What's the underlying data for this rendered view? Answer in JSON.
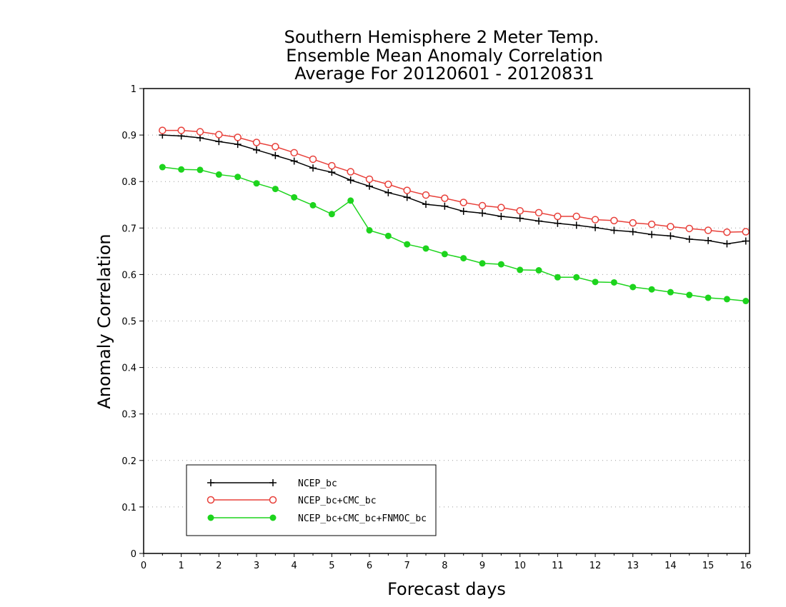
{
  "chart_data": {
    "type": "line",
    "title": [
      "Southern Hemisphere 2 Meter Temp.",
      "Ensemble Mean Anomaly Correlation",
      "Average For 20120601 - 20120831"
    ],
    "xlabel": "Forecast days",
    "ylabel": "Anomaly Correlation",
    "xlim": [
      0,
      16.1
    ],
    "ylim": [
      0,
      1
    ],
    "xticks": [
      "0",
      "1",
      "2",
      "3",
      "4",
      "5",
      "6",
      "7",
      "8",
      "9",
      "10",
      "11",
      "12",
      "13",
      "14",
      "15",
      "16"
    ],
    "yticks": [
      "0",
      "0.1",
      "0.2",
      "0.3",
      "0.4",
      "0.5",
      "0.6",
      "0.7",
      "0.8",
      "0.9",
      "1"
    ],
    "grid": true,
    "legend_position": "bottom-left",
    "x": [
      0.5,
      1,
      1.5,
      2,
      2.5,
      3,
      3.5,
      4,
      4.5,
      5,
      5.5,
      6,
      6.5,
      7,
      7.5,
      8,
      8.5,
      9,
      9.5,
      10,
      10.5,
      11,
      11.5,
      12,
      12.5,
      13,
      13.5,
      14,
      14.5,
      15,
      15.5,
      16
    ],
    "series": [
      {
        "name": "NCEP_bc",
        "color": "#000000",
        "marker": "plus",
        "values": [
          0.9,
          0.898,
          0.894,
          0.886,
          0.88,
          0.868,
          0.856,
          0.844,
          0.829,
          0.82,
          0.803,
          0.79,
          0.776,
          0.766,
          0.751,
          0.747,
          0.736,
          0.732,
          0.725,
          0.721,
          0.715,
          0.71,
          0.706,
          0.701,
          0.695,
          0.692,
          0.686,
          0.683,
          0.676,
          0.673,
          0.666,
          0.672
        ]
      },
      {
        "name": "NCEP_bc+CMC_bc",
        "color": "#e8403a",
        "marker": "open-circle",
        "values": [
          0.91,
          0.91,
          0.907,
          0.901,
          0.895,
          0.884,
          0.875,
          0.862,
          0.848,
          0.834,
          0.821,
          0.805,
          0.794,
          0.781,
          0.771,
          0.764,
          0.755,
          0.748,
          0.744,
          0.737,
          0.733,
          0.725,
          0.725,
          0.718,
          0.716,
          0.711,
          0.708,
          0.703,
          0.699,
          0.695,
          0.691,
          0.692
        ]
      },
      {
        "name": "NCEP_bc+CMC_bc+FNMOC_bc",
        "color": "#1dd41d",
        "marker": "filled-circle",
        "values": [
          0.831,
          0.826,
          0.825,
          0.815,
          0.81,
          0.796,
          0.784,
          0.766,
          0.749,
          0.73,
          0.759,
          0.695,
          0.683,
          0.665,
          0.656,
          0.644,
          0.635,
          0.624,
          0.622,
          0.61,
          0.609,
          0.594,
          0.594,
          0.584,
          0.583,
          0.573,
          0.568,
          0.562,
          0.556,
          0.55,
          0.547,
          0.543
        ]
      }
    ]
  }
}
